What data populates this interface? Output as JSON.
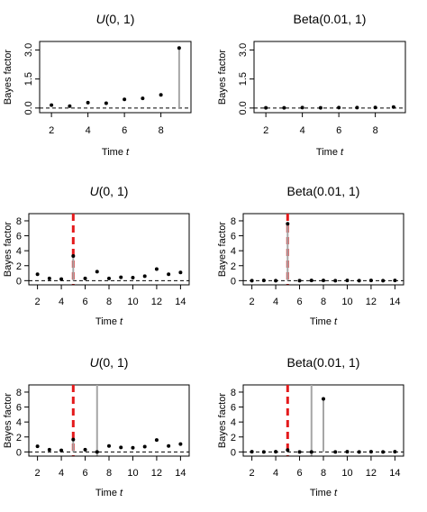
{
  "chart_data": [
    {
      "type": "stem",
      "title": "U(0, 1)",
      "title_dist": "U",
      "title_args": "(0, 1)",
      "xlabel": "Time",
      "xlabel_var": "t",
      "ylabel": "Bayes factor",
      "xlim": [
        1.5,
        9.5
      ],
      "ylim": [
        -0.1,
        3.3
      ],
      "xticks": [
        2,
        4,
        6,
        8
      ],
      "yticks": [
        0.0,
        1.5,
        3.0
      ],
      "ytick_labels": [
        "0.0",
        "1.5",
        "3.0"
      ],
      "rotate_ytick_labels": true,
      "reference_line": 0,
      "x": [
        2,
        3,
        4,
        5,
        6,
        7,
        8,
        9
      ],
      "y": [
        0.15,
        0.1,
        0.28,
        0.25,
        0.45,
        0.5,
        0.68,
        3.1
      ],
      "highlight": [
        {
          "x": 9,
          "color": "#a6a6a6"
        }
      ],
      "vlines": []
    },
    {
      "type": "stem",
      "title": "Beta(0.01, 1)",
      "xlabel": "Time",
      "xlabel_var": "t",
      "ylabel": "Bayes factor",
      "xlim": [
        1.5,
        9.5
      ],
      "ylim": [
        -0.1,
        3.3
      ],
      "xticks": [
        2,
        4,
        6,
        8
      ],
      "yticks": [
        0.0,
        1.5,
        3.0
      ],
      "ytick_labels": [
        "0.0",
        "1.5",
        "3.0"
      ],
      "rotate_ytick_labels": true,
      "reference_line": 0,
      "x": [
        2,
        3,
        4,
        5,
        6,
        7,
        8,
        9
      ],
      "y": [
        0.01,
        0.01,
        0.02,
        0.01,
        0.02,
        0.02,
        0.03,
        0.05
      ],
      "highlight": [],
      "vlines": []
    },
    {
      "type": "stem",
      "title": "U(0, 1)",
      "title_dist": "U",
      "title_args": "(0, 1)",
      "xlabel": "Time",
      "xlabel_var": "t",
      "ylabel": "Bayes factor",
      "xlim": [
        1.5,
        14.5
      ],
      "ylim": [
        -0.2,
        8.6
      ],
      "xticks": [
        2,
        4,
        6,
        8,
        10,
        12,
        14
      ],
      "yticks": [
        0,
        2,
        4,
        6,
        8
      ],
      "ytick_labels": [
        "0",
        "2",
        "4",
        "6",
        "8"
      ],
      "rotate_ytick_labels": false,
      "reference_line": 0,
      "x": [
        2,
        3,
        4,
        5,
        6,
        7,
        8,
        9,
        10,
        11,
        12,
        13,
        14
      ],
      "y": [
        0.85,
        0.3,
        0.2,
        3.3,
        0.3,
        1.2,
        0.3,
        0.45,
        0.4,
        0.6,
        1.55,
        0.85,
        1.1
      ],
      "highlight": [
        {
          "x": 5,
          "color": "#a6a6a6"
        }
      ],
      "vlines": [
        {
          "x": 5,
          "color": "#e41a1c",
          "style": "dashed"
        }
      ]
    },
    {
      "type": "stem",
      "title": "Beta(0.01, 1)",
      "xlabel": "Time",
      "xlabel_var": "t",
      "ylabel": "Bayes factor",
      "xlim": [
        1.5,
        14.5
      ],
      "ylim": [
        -0.2,
        8.6
      ],
      "xticks": [
        2,
        4,
        6,
        8,
        10,
        12,
        14
      ],
      "yticks": [
        0,
        2,
        4,
        6,
        8
      ],
      "ytick_labels": [
        "0",
        "2",
        "4",
        "6",
        "8"
      ],
      "rotate_ytick_labels": false,
      "reference_line": 0,
      "x": [
        2,
        3,
        4,
        5,
        6,
        7,
        8,
        9,
        10,
        11,
        12,
        13,
        14
      ],
      "y": [
        0.0,
        0.02,
        0.0,
        7.6,
        0.0,
        0.02,
        0.02,
        0.0,
        0.02,
        0.0,
        0.02,
        0.0,
        0.02
      ],
      "highlight": [
        {
          "x": 5,
          "color": "#a6a6a6"
        }
      ],
      "vlines": [
        {
          "x": 5,
          "color": "#e41a1c",
          "style": "dashed"
        }
      ]
    },
    {
      "type": "stem",
      "title": "U(0, 1)",
      "title_dist": "U",
      "title_args": "(0, 1)",
      "xlabel": "Time",
      "xlabel_var": "t",
      "ylabel": "Bayes factor",
      "xlim": [
        1.5,
        14.5
      ],
      "ylim": [
        -0.2,
        8.6
      ],
      "xticks": [
        2,
        4,
        6,
        8,
        10,
        12,
        14
      ],
      "yticks": [
        0,
        2,
        4,
        6,
        8
      ],
      "ytick_labels": [
        "0",
        "2",
        "4",
        "6",
        "8"
      ],
      "rotate_ytick_labels": false,
      "reference_line": 0,
      "x": [
        2,
        3,
        4,
        5,
        6,
        7,
        8,
        9,
        10,
        11,
        12,
        13,
        14
      ],
      "y": [
        0.75,
        0.3,
        0.2,
        1.65,
        0.3,
        0.0,
        0.8,
        0.6,
        0.55,
        0.7,
        1.6,
        0.8,
        1.05
      ],
      "highlight": [
        {
          "x": 5,
          "color": "#a6a6a6"
        }
      ],
      "vlines": [
        {
          "x": 5,
          "color": "#e41a1c",
          "style": "dashed"
        },
        {
          "x": 7,
          "color": "#a6a6a6",
          "style": "solid"
        }
      ]
    },
    {
      "type": "stem",
      "title": "Beta(0.01, 1)",
      "xlabel": "Time",
      "xlabel_var": "t",
      "ylabel": "Bayes factor",
      "xlim": [
        1.5,
        14.5
      ],
      "ylim": [
        -0.2,
        8.6
      ],
      "xticks": [
        2,
        4,
        6,
        8,
        10,
        12,
        14
      ],
      "yticks": [
        0,
        2,
        4,
        6,
        8
      ],
      "ytick_labels": [
        "0",
        "2",
        "4",
        "6",
        "8"
      ],
      "rotate_ytick_labels": false,
      "reference_line": 0,
      "x": [
        2,
        3,
        4,
        5,
        6,
        7,
        8,
        9,
        10,
        11,
        12,
        13,
        14
      ],
      "y": [
        0.02,
        0.0,
        0.02,
        0.25,
        0.0,
        0.0,
        7.1,
        0.0,
        0.02,
        0.0,
        0.02,
        0.0,
        0.02
      ],
      "highlight": [
        {
          "x": 5,
          "color": "#a6a6a6"
        },
        {
          "x": 8,
          "color": "#a6a6a6"
        }
      ],
      "vlines": [
        {
          "x": 5,
          "color": "#e41a1c",
          "style": "dashed"
        },
        {
          "x": 7,
          "color": "#a6a6a6",
          "style": "solid"
        }
      ]
    }
  ]
}
